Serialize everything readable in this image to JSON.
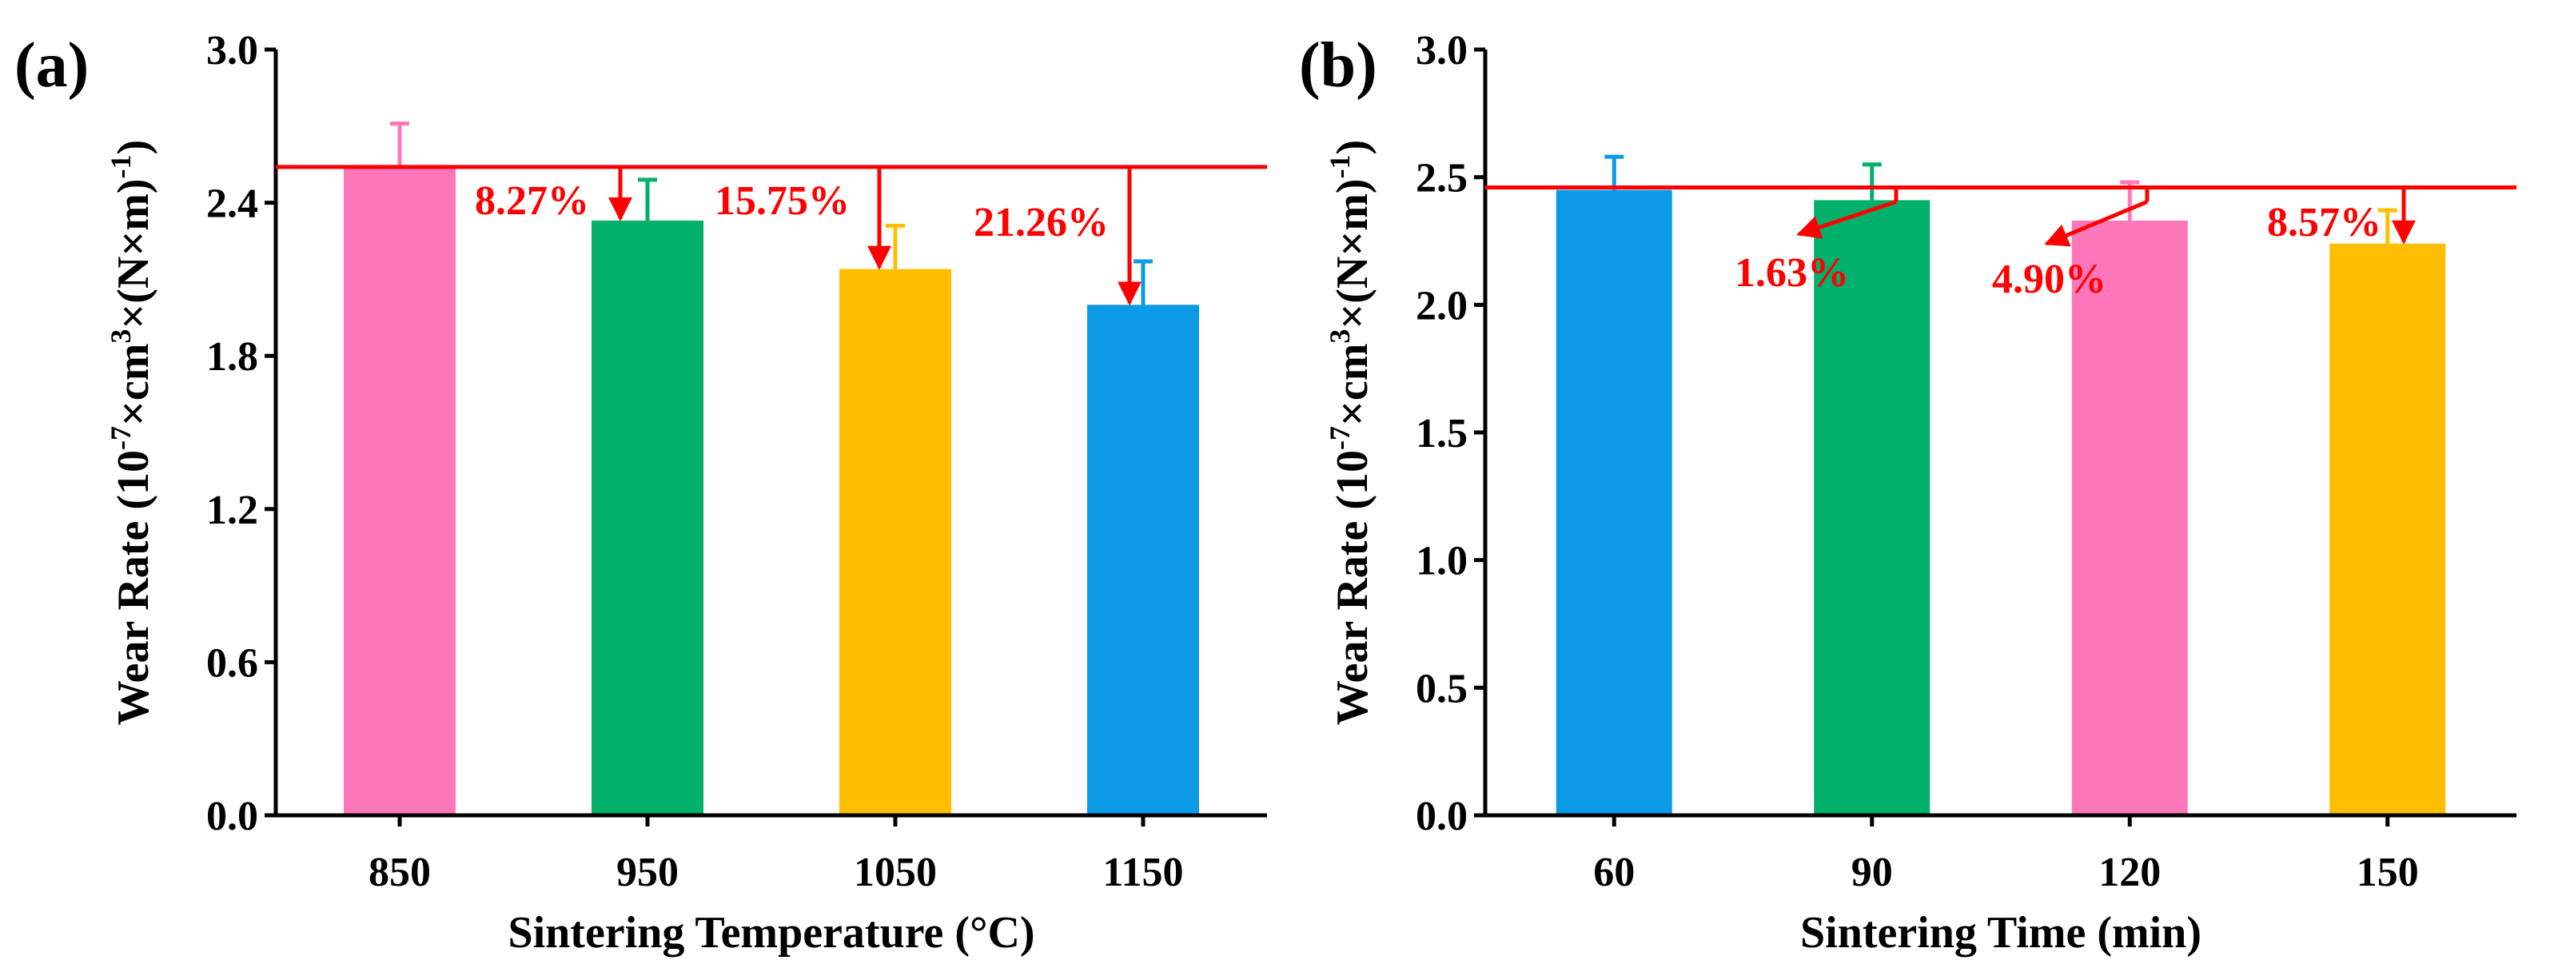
{
  "chart_data": [
    {
      "type": "bar",
      "panel_label": "(a)",
      "xlabel": "Sintering Temperature (°C)",
      "ylabel_main": "Wear Rate (10",
      "ylabel_exp1": "-7",
      "ylabel_mid": "×cm",
      "ylabel_exp2": "3",
      "ylabel_mid2": "×(N×m)",
      "ylabel_exp3": "-1",
      "ylabel_end": ")",
      "ylim": [
        0.0,
        3.0
      ],
      "yticks": [
        0.0,
        0.6,
        1.2,
        1.8,
        2.4,
        3.0
      ],
      "ytick_labels": [
        "0.0",
        "0.6",
        "1.2",
        "1.8",
        "2.4",
        "3.0"
      ],
      "categories": [
        "850",
        "950",
        "1050",
        "1150"
      ],
      "values": [
        2.54,
        2.33,
        2.14,
        2.0
      ],
      "errors": [
        0.17,
        0.16,
        0.17,
        0.17
      ],
      "colors": [
        "#ff77bb",
        "#00b06b",
        "#ffbf00",
        "#0b9be6"
      ],
      "reference_line": 2.54,
      "reference_color": "#ff0000",
      "annotations": [
        {
          "text": "8.27%",
          "bar_index": 1
        },
        {
          "text": "15.75%",
          "bar_index": 2
        },
        {
          "text": "21.26%",
          "bar_index": 3
        }
      ]
    },
    {
      "type": "bar",
      "panel_label": "(b)",
      "xlabel": "Sintering Time (min)",
      "ylabel_main": "Wear Rate (10",
      "ylabel_exp1": "-7",
      "ylabel_mid": "×cm",
      "ylabel_exp2": "3",
      "ylabel_mid2": "×(N×m)",
      "ylabel_exp3": "-1",
      "ylabel_end": ")",
      "ylim": [
        0.0,
        3.0
      ],
      "yticks": [
        0.0,
        0.5,
        1.0,
        1.5,
        2.0,
        2.5,
        3.0
      ],
      "ytick_labels": [
        "0.0",
        "0.5",
        "1.0",
        "1.5",
        "2.0",
        "2.5",
        "3.0"
      ],
      "categories": [
        "60",
        "90",
        "120",
        "150"
      ],
      "values": [
        2.45,
        2.41,
        2.33,
        2.24
      ],
      "errors": [
        0.13,
        0.14,
        0.15,
        0.13
      ],
      "colors": [
        "#0b9be6",
        "#00b06b",
        "#ff77bb",
        "#ffbf00"
      ],
      "reference_line": 2.46,
      "reference_color": "#ff0000",
      "annotations": [
        {
          "text": "1.63%",
          "bar_index": 1
        },
        {
          "text": "4.90%",
          "bar_index": 2
        },
        {
          "text": "8.57%",
          "bar_index": 3
        }
      ]
    }
  ]
}
